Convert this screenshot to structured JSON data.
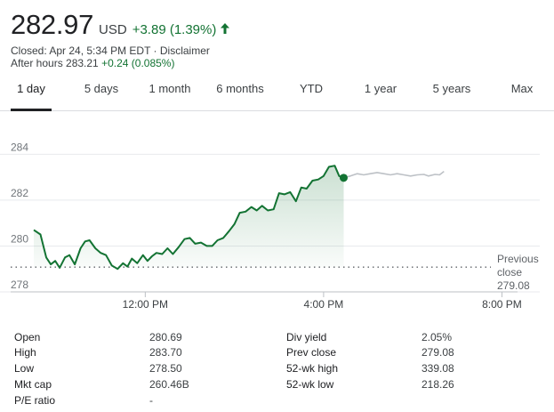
{
  "quote": {
    "price": "282.97",
    "currency": "USD",
    "change": "+3.89 (1.39%)",
    "closed_text": "Closed: Apr 24, 5:34 PM EDT",
    "disclaimer": "Disclaimer",
    "after_hours_label": "After hours 283.21",
    "after_hours_change": "+0.24 (0.085%)",
    "accent_color": "#137333"
  },
  "tabs": [
    {
      "label": "1 day",
      "active": true
    },
    {
      "label": "5 days"
    },
    {
      "label": "1 month"
    },
    {
      "label": "6 months"
    },
    {
      "label": "YTD"
    },
    {
      "label": "1 year"
    },
    {
      "label": "5 years"
    },
    {
      "label": "Max"
    }
  ],
  "chart_data": {
    "type": "line",
    "y_ticks": [
      "284",
      "282",
      "280",
      "278"
    ],
    "x_ticks": [
      "12:00 PM",
      "4:00 PM",
      "8:00 PM"
    ],
    "ylim": [
      278,
      284.4
    ],
    "previous_close": 279.08,
    "previous_close_label": [
      "Previous",
      "close",
      "279.08"
    ],
    "series": [
      {
        "session": "regular",
        "color": "#137333",
        "points": [
          [
            0,
            280.7
          ],
          [
            0.15,
            280.5
          ],
          [
            0.28,
            279.5
          ],
          [
            0.38,
            279.2
          ],
          [
            0.48,
            279.35
          ],
          [
            0.58,
            279.05
          ],
          [
            0.7,
            279.5
          ],
          [
            0.8,
            279.6
          ],
          [
            0.92,
            279.2
          ],
          [
            1.05,
            279.9
          ],
          [
            1.15,
            280.2
          ],
          [
            1.25,
            280.25
          ],
          [
            1.38,
            279.9
          ],
          [
            1.5,
            279.7
          ],
          [
            1.62,
            279.6
          ],
          [
            1.75,
            279.15
          ],
          [
            1.88,
            279.0
          ],
          [
            2.0,
            279.25
          ],
          [
            2.1,
            279.1
          ],
          [
            2.2,
            279.45
          ],
          [
            2.32,
            279.25
          ],
          [
            2.45,
            279.6
          ],
          [
            2.55,
            279.35
          ],
          [
            2.65,
            279.55
          ],
          [
            2.75,
            279.7
          ],
          [
            2.88,
            279.65
          ],
          [
            3.0,
            279.9
          ],
          [
            3.12,
            279.65
          ],
          [
            3.25,
            279.95
          ],
          [
            3.38,
            280.3
          ],
          [
            3.5,
            280.35
          ],
          [
            3.62,
            280.1
          ],
          [
            3.75,
            280.15
          ],
          [
            3.88,
            280.0
          ],
          [
            4.0,
            280.0
          ],
          [
            4.12,
            280.25
          ],
          [
            4.25,
            280.35
          ],
          [
            4.38,
            280.65
          ],
          [
            4.5,
            280.95
          ],
          [
            4.62,
            281.45
          ],
          [
            4.75,
            281.5
          ],
          [
            4.88,
            281.7
          ],
          [
            5.0,
            281.55
          ],
          [
            5.12,
            281.75
          ],
          [
            5.25,
            281.55
          ],
          [
            5.38,
            281.6
          ],
          [
            5.5,
            282.3
          ],
          [
            5.62,
            282.25
          ],
          [
            5.75,
            282.35
          ],
          [
            5.88,
            281.95
          ],
          [
            6.0,
            282.55
          ],
          [
            6.12,
            282.5
          ],
          [
            6.25,
            282.85
          ],
          [
            6.38,
            282.9
          ],
          [
            6.5,
            283.05
          ],
          [
            6.62,
            283.45
          ],
          [
            6.75,
            283.5
          ],
          [
            6.85,
            283.05
          ],
          [
            6.95,
            282.97
          ]
        ]
      },
      {
        "session": "after-hours",
        "color": "#bdc1c6",
        "points": [
          [
            6.95,
            282.97
          ],
          [
            7.1,
            283.05
          ],
          [
            7.25,
            283.15
          ],
          [
            7.4,
            283.1
          ],
          [
            7.55,
            283.15
          ],
          [
            7.7,
            283.2
          ],
          [
            7.85,
            283.15
          ],
          [
            8.0,
            283.1
          ],
          [
            8.15,
            283.15
          ],
          [
            8.3,
            283.1
          ],
          [
            8.45,
            283.05
          ],
          [
            8.6,
            283.1
          ],
          [
            8.75,
            283.12
          ],
          [
            8.85,
            283.05
          ],
          [
            9.0,
            283.12
          ],
          [
            9.1,
            283.1
          ],
          [
            9.2,
            283.25
          ]
        ]
      }
    ],
    "x_axis": {
      "start_label_hour": 0,
      "ticks_hours": [
        2.5,
        6.5,
        10.5
      ],
      "range_hours": [
        0,
        10.85
      ]
    }
  },
  "stats": {
    "left": [
      {
        "label": "Open",
        "value": "280.69"
      },
      {
        "label": "High",
        "value": "283.70"
      },
      {
        "label": "Low",
        "value": "278.50"
      },
      {
        "label": "Mkt cap",
        "value": "260.46B"
      },
      {
        "label": "P/E ratio",
        "value": "-"
      }
    ],
    "right": [
      {
        "label": "Div yield",
        "value": "2.05%"
      },
      {
        "label": "Prev close",
        "value": "279.08"
      },
      {
        "label": "52-wk high",
        "value": "339.08"
      },
      {
        "label": "52-wk low",
        "value": "218.26"
      }
    ]
  }
}
